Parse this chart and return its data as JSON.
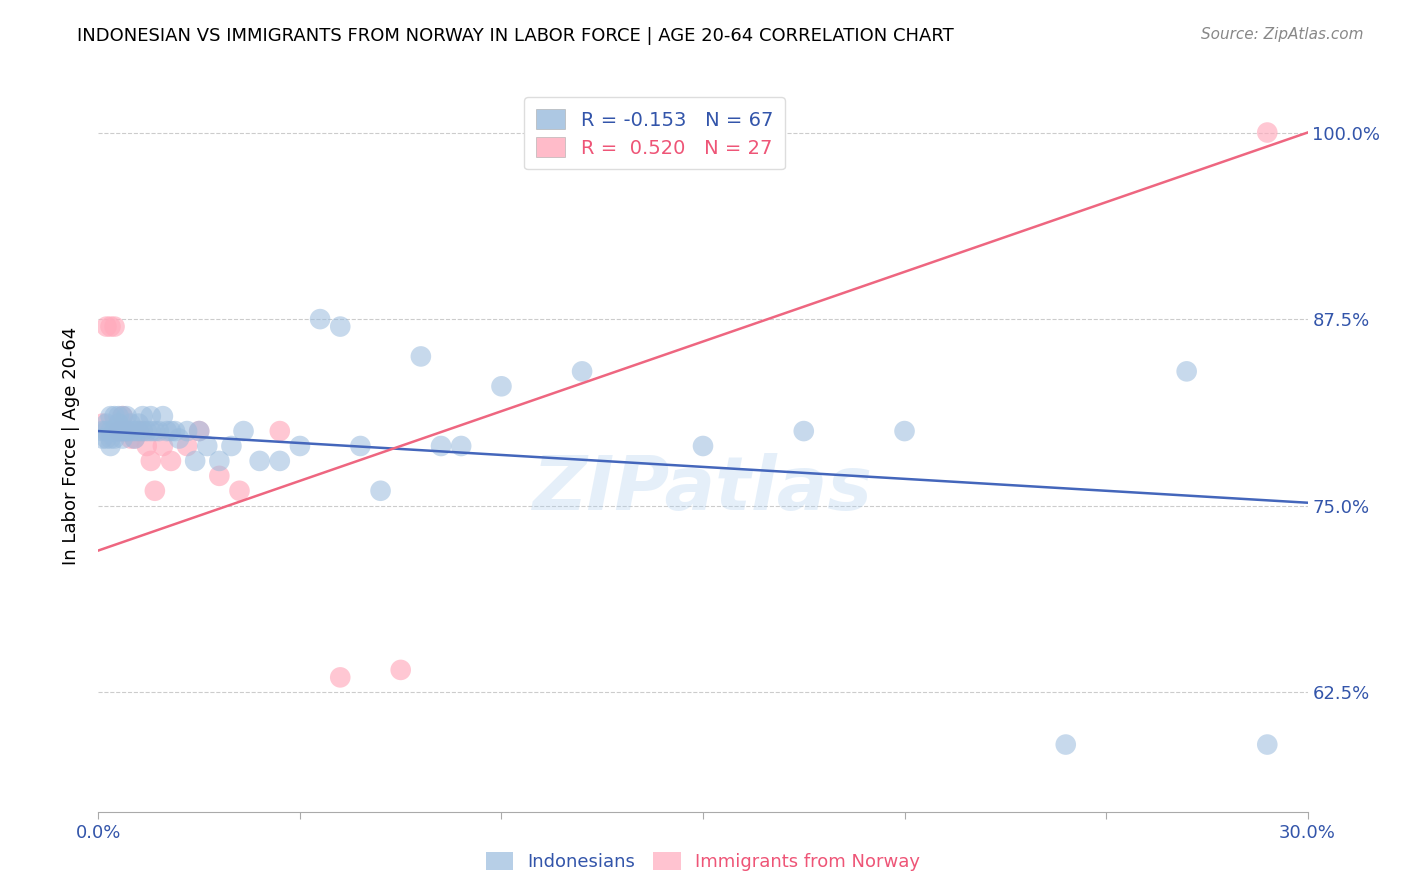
{
  "title": "INDONESIAN VS IMMIGRANTS FROM NORWAY IN LABOR FORCE | AGE 20-64 CORRELATION CHART",
  "source": "Source: ZipAtlas.com",
  "ylabel": "In Labor Force | Age 20-64",
  "xlim": [
    0.0,
    0.3
  ],
  "ylim": [
    0.545,
    1.035
  ],
  "xticks": [
    0.0,
    0.05,
    0.1,
    0.15,
    0.2,
    0.25,
    0.3
  ],
  "xticklabels": [
    "0.0%",
    "",
    "",
    "",
    "",
    "",
    "30.0%"
  ],
  "ytick_positions": [
    0.625,
    0.75,
    0.875,
    1.0
  ],
  "ytick_labels": [
    "62.5%",
    "75.0%",
    "87.5%",
    "100.0%"
  ],
  "legend_blue_label": "R = -0.153   N = 67",
  "legend_pink_label": "R =  0.520   N = 27",
  "label_indonesians": "Indonesians",
  "label_norway": "Immigrants from Norway",
  "blue_color": "#99BBDD",
  "pink_color": "#FFAABC",
  "blue_line_color": "#4466BB",
  "pink_line_color": "#EE6680",
  "watermark": "ZIPatlas",
  "blue_line_x0": 0.0,
  "blue_line_y0": 0.8,
  "blue_line_x1": 0.3,
  "blue_line_y1": 0.752,
  "pink_line_x0": 0.0,
  "pink_line_y0": 0.72,
  "pink_line_x1": 0.3,
  "pink_line_y1": 1.0,
  "indonesians_x": [
    0.001,
    0.001,
    0.002,
    0.002,
    0.002,
    0.003,
    0.003,
    0.003,
    0.003,
    0.004,
    0.004,
    0.004,
    0.004,
    0.005,
    0.005,
    0.005,
    0.005,
    0.006,
    0.006,
    0.006,
    0.006,
    0.007,
    0.007,
    0.007,
    0.008,
    0.008,
    0.009,
    0.009,
    0.01,
    0.01,
    0.011,
    0.011,
    0.012,
    0.013,
    0.013,
    0.014,
    0.015,
    0.016,
    0.017,
    0.018,
    0.019,
    0.02,
    0.022,
    0.024,
    0.025,
    0.027,
    0.03,
    0.033,
    0.036,
    0.04,
    0.045,
    0.05,
    0.055,
    0.06,
    0.065,
    0.07,
    0.08,
    0.085,
    0.09,
    0.1,
    0.12,
    0.15,
    0.175,
    0.2,
    0.24,
    0.27,
    0.29
  ],
  "indonesians_y": [
    0.8,
    0.795,
    0.805,
    0.8,
    0.795,
    0.81,
    0.8,
    0.795,
    0.79,
    0.8,
    0.81,
    0.8,
    0.795,
    0.805,
    0.8,
    0.81,
    0.8,
    0.8,
    0.81,
    0.8,
    0.795,
    0.8,
    0.81,
    0.8,
    0.805,
    0.8,
    0.8,
    0.795,
    0.805,
    0.8,
    0.81,
    0.8,
    0.8,
    0.8,
    0.81,
    0.8,
    0.8,
    0.81,
    0.8,
    0.8,
    0.8,
    0.795,
    0.8,
    0.78,
    0.8,
    0.79,
    0.78,
    0.79,
    0.8,
    0.78,
    0.78,
    0.79,
    0.875,
    0.87,
    0.79,
    0.76,
    0.85,
    0.79,
    0.79,
    0.83,
    0.84,
    0.79,
    0.8,
    0.8,
    0.59,
    0.84,
    0.59
  ],
  "norway_x": [
    0.001,
    0.002,
    0.003,
    0.004,
    0.005,
    0.005,
    0.006,
    0.006,
    0.007,
    0.007,
    0.008,
    0.009,
    0.01,
    0.011,
    0.012,
    0.013,
    0.014,
    0.016,
    0.018,
    0.022,
    0.025,
    0.03,
    0.035,
    0.045,
    0.06,
    0.075,
    0.29
  ],
  "norway_y": [
    0.805,
    0.87,
    0.87,
    0.87,
    0.8,
    0.8,
    0.81,
    0.8,
    0.8,
    0.8,
    0.795,
    0.795,
    0.8,
    0.8,
    0.79,
    0.78,
    0.76,
    0.79,
    0.78,
    0.79,
    0.8,
    0.77,
    0.76,
    0.8,
    0.635,
    0.64,
    1.0
  ]
}
